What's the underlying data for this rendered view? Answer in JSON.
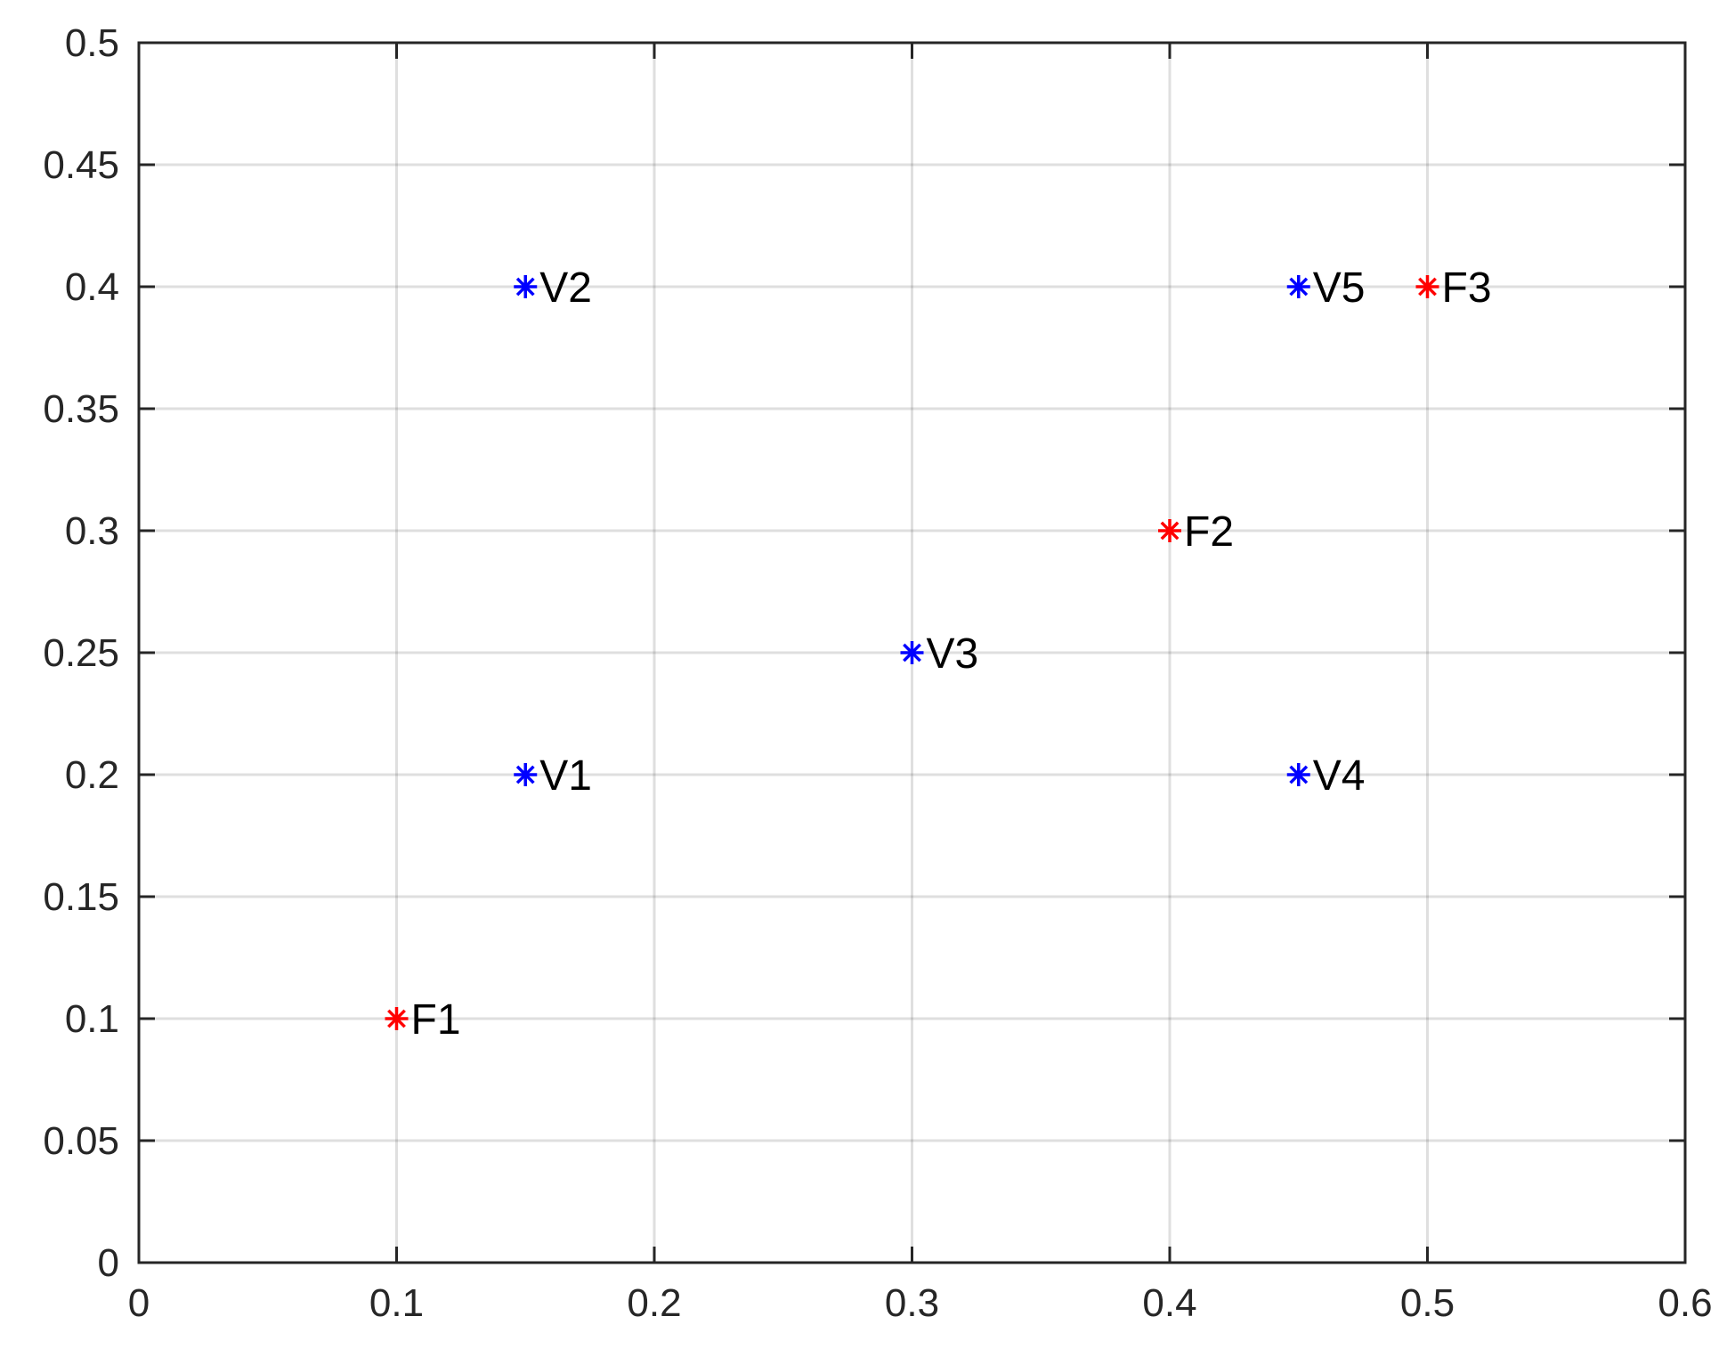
{
  "chart_data": {
    "type": "scatter",
    "title": "",
    "xlabel": "",
    "ylabel": "",
    "xlim": [
      0,
      0.6
    ],
    "ylim": [
      0,
      0.5
    ],
    "grid": true,
    "x_ticks": [
      "0",
      "0.1",
      "0.2",
      "0.3",
      "0.4",
      "0.5",
      "0.6"
    ],
    "y_ticks": [
      "0",
      "0.05",
      "0.1",
      "0.15",
      "0.2",
      "0.25",
      "0.3",
      "0.35",
      "0.4",
      "0.45",
      "0.5"
    ],
    "x_tick_values": [
      0,
      0.1,
      0.2,
      0.3,
      0.4,
      0.5,
      0.6
    ],
    "y_tick_values": [
      0,
      0.05,
      0.1,
      0.15,
      0.2,
      0.25,
      0.3,
      0.35,
      0.4,
      0.45,
      0.5
    ],
    "marker": "asterisk",
    "series": [
      {
        "color": "#ff0000",
        "points": [
          {
            "label": "F1",
            "x": 0.1,
            "y": 0.1
          },
          {
            "label": "F2",
            "x": 0.4,
            "y": 0.3
          },
          {
            "label": "F3",
            "x": 0.5,
            "y": 0.4
          }
        ]
      },
      {
        "color": "#0000ff",
        "points": [
          {
            "label": "V1",
            "x": 0.15,
            "y": 0.2
          },
          {
            "label": "V2",
            "x": 0.15,
            "y": 0.4
          },
          {
            "label": "V3",
            "x": 0.3,
            "y": 0.25
          },
          {
            "label": "V4",
            "x": 0.45,
            "y": 0.2
          },
          {
            "label": "V5",
            "x": 0.45,
            "y": 0.4
          }
        ]
      }
    ]
  }
}
